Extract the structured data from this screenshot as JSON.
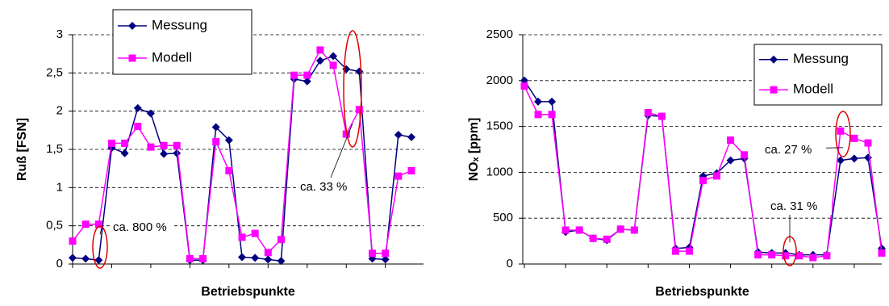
{
  "chart_data": [
    {
      "type": "line",
      "ylabel": "Ruß [FSN]",
      "xlabel": "Betriebspunkte",
      "ylim": [
        0,
        3
      ],
      "yticks": [
        0,
        {
          "value": 0.5,
          "label": "0,5"
        },
        1,
        {
          "value": 1.5,
          "label": "1,5"
        },
        2,
        {
          "value": 2.5,
          "label": "2,5"
        },
        3
      ],
      "grid": true,
      "legend": "upper left",
      "series": [
        {
          "name": "Messung",
          "color": "#000080",
          "marker": "diamond",
          "values": [
            0.08,
            0.07,
            0.05,
            1.52,
            1.45,
            2.04,
            1.97,
            1.44,
            1.45,
            0.05,
            0.05,
            1.79,
            1.62,
            0.09,
            0.08,
            0.06,
            0.04,
            2.42,
            2.39,
            2.66,
            2.72,
            2.55,
            2.52,
            0.07,
            0.06,
            1.69,
            1.66
          ]
        },
        {
          "name": "Modell",
          "color": "#ff00ff",
          "marker": "square",
          "values": [
            0.3,
            0.52,
            0.52,
            1.58,
            1.58,
            1.8,
            1.53,
            1.55,
            1.55,
            0.07,
            0.07,
            1.6,
            1.22,
            0.35,
            0.4,
            0.15,
            0.32,
            2.47,
            2.47,
            2.8,
            2.6,
            1.7,
            2.02,
            0.14,
            0.14,
            1.15,
            1.22
          ]
        }
      ],
      "annotations": [
        "ca. 800 %",
        "ca. 33 %"
      ]
    },
    {
      "type": "line",
      "ylabel": "NOₓ [ppm]",
      "xlabel": "Betriebspunkte",
      "ylim": [
        0,
        2500
      ],
      "yticks": [
        0,
        500,
        1000,
        1500,
        2000,
        2500
      ],
      "grid": true,
      "legend": "upper right",
      "series": [
        {
          "name": "Messung",
          "color": "#000080",
          "marker": "diamond",
          "values": [
            2000,
            1770,
            1770,
            350,
            370,
            280,
            260,
            380,
            370,
            1620,
            1610,
            170,
            180,
            960,
            990,
            1130,
            1150,
            130,
            120,
            120,
            100,
            100,
            100,
            1130,
            1150,
            1160,
            170
          ]
        },
        {
          "name": "Modell",
          "color": "#ff00ff",
          "marker": "square",
          "values": [
            1940,
            1630,
            1630,
            370,
            370,
            280,
            270,
            380,
            370,
            1650,
            1610,
            140,
            140,
            910,
            960,
            1350,
            1190,
            100,
            100,
            90,
            90,
            70,
            90,
            1450,
            1370,
            1320,
            120
          ]
        }
      ],
      "annotations": [
        "ca. 31 %",
        "ca. 27 %"
      ]
    }
  ]
}
